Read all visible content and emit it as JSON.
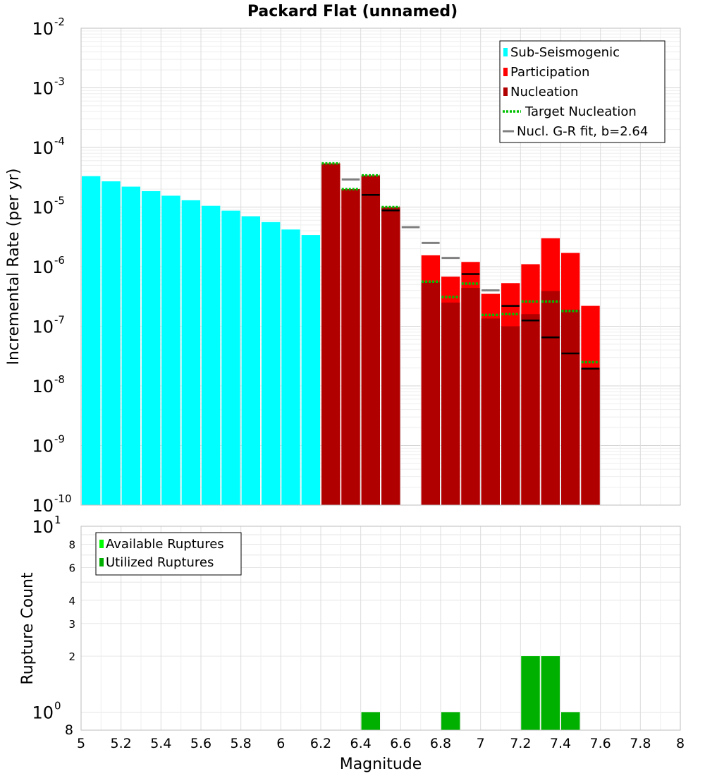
{
  "chart_data": [
    {
      "type": "bar",
      "title": "Packard Flat (unnamed)",
      "xlabel": "",
      "ylabel": "Incremental Rate (per yr)",
      "yscale": "log",
      "ylim": [
        1e-10,
        0.01
      ],
      "xlim": [
        5,
        8
      ],
      "grid": true,
      "legend_position": "top-right",
      "bin_width": 0.1,
      "y_ticks": [
        {
          "base": "10",
          "exp": "-10"
        },
        {
          "base": "10",
          "exp": "-9"
        },
        {
          "base": "10",
          "exp": "-8"
        },
        {
          "base": "10",
          "exp": "-7"
        },
        {
          "base": "10",
          "exp": "-6"
        },
        {
          "base": "10",
          "exp": "-5"
        },
        {
          "base": "10",
          "exp": "-4"
        },
        {
          "base": "10",
          "exp": "-3"
        },
        {
          "base": "10",
          "exp": "-2"
        }
      ],
      "legend": [
        {
          "label": "Sub-Seismogenic",
          "kind": "box",
          "color": "#00ffff"
        },
        {
          "label": "Participation",
          "kind": "box",
          "color": "#ff0000"
        },
        {
          "label": "Nucleation",
          "kind": "box",
          "color": "#b00000"
        },
        {
          "label": "Target Nucleation",
          "kind": "dotted",
          "color": "#00c000"
        },
        {
          "label": "Nucl. G-R fit, b=2.64",
          "kind": "line",
          "color": "#808080"
        }
      ],
      "series": [
        {
          "name": "Sub-Seismogenic",
          "color": "#00ffff",
          "x": [
            5.05,
            5.15,
            5.25,
            5.35,
            5.45,
            5.55,
            5.65,
            5.75,
            5.85,
            5.95,
            6.05,
            6.15
          ],
          "values": [
            3.3e-05,
            2.7e-05,
            2.2e-05,
            1.85e-05,
            1.55e-05,
            1.3e-05,
            1.05e-05,
            8.7e-06,
            7e-06,
            5.6e-06,
            4.2e-06,
            3.4e-06
          ]
        },
        {
          "name": "Participation",
          "color": "#ff0000",
          "x": [
            6.25,
            6.35,
            6.45,
            6.55,
            6.75,
            6.85,
            6.95,
            7.05,
            7.15,
            7.25,
            7.35,
            7.45,
            7.55
          ],
          "values": [
            5.4e-05,
            2e-05,
            3.4e-05,
            1e-05,
            1.55e-06,
            6.8e-07,
            1.2e-06,
            3.5e-07,
            5.3e-07,
            1.1e-06,
            3e-06,
            1.7e-06,
            2.2e-07
          ]
        },
        {
          "name": "Nucleation",
          "color": "#b00000",
          "x": [
            6.25,
            6.35,
            6.45,
            6.55,
            6.75,
            6.85,
            6.95,
            7.05,
            7.15,
            7.25,
            7.35,
            7.45,
            7.55
          ],
          "values": [
            5.4e-05,
            2e-05,
            3.4e-05,
            1e-05,
            5.5e-07,
            2.5e-07,
            4.4e-07,
            1.35e-07,
            1e-07,
            1.6e-07,
            3.9e-07,
            1.9e-07,
            2e-08
          ]
        },
        {
          "name": "Target Nucleation",
          "color": "#00c000",
          "x": [
            6.25,
            6.35,
            6.45,
            6.55,
            6.75,
            6.85,
            6.95,
            7.05,
            7.15,
            7.25,
            7.35,
            7.45,
            7.55
          ],
          "values": [
            5.4e-05,
            2e-05,
            3.4e-05,
            1e-05,
            5.6e-07,
            3.1e-07,
            5.2e-07,
            1.55e-07,
            1.6e-07,
            2.6e-07,
            2.6e-07,
            1.8e-07,
            2.5e-08
          ]
        },
        {
          "name": "Nucl. G-R fit, b=2.64",
          "color": "#808080",
          "x": [
            6.35,
            6.65,
            6.75,
            6.85,
            7.05
          ],
          "values": [
            2.9e-05,
            4.6e-06,
            2.5e-06,
            1.4e-06,
            4e-07
          ]
        },
        {
          "name": "",
          "color": "#000000",
          "x": [
            6.45,
            6.55,
            6.95,
            7.15,
            7.25,
            7.35,
            7.45,
            7.55
          ],
          "values": [
            1.6e-05,
            8.8e-06,
            7.5e-07,
            2.2e-07,
            1.25e-07,
            6.5e-08,
            3.5e-08,
            1.95e-08
          ]
        }
      ]
    },
    {
      "type": "bar",
      "xlabel": "Magnitude",
      "ylabel": "Rupture Count",
      "yscale": "log",
      "ylim": [
        0.8,
        10
      ],
      "xlim": [
        5,
        8
      ],
      "grid": true,
      "legend_position": "top-left",
      "bin_width": 0.1,
      "x_ticks": [
        "5",
        "5.2",
        "5.4",
        "5.6",
        "5.8",
        "6",
        "6.2",
        "6.4",
        "6.6",
        "6.8",
        "7",
        "7.2",
        "7.4",
        "7.6",
        "7.8",
        "8"
      ],
      "y_major_ticks": [
        {
          "base": "10",
          "exp": "0",
          "value": 1
        },
        {
          "base": "10",
          "exp": "1",
          "value": 10
        }
      ],
      "y_minor_ticks": [
        {
          "label": "2",
          "value": 2
        },
        {
          "label": "3",
          "value": 3
        },
        {
          "label": "4",
          "value": 4
        },
        {
          "label": "6",
          "value": 6
        },
        {
          "label": "8",
          "value": 8
        },
        {
          "label": "8",
          "value": 0.8
        }
      ],
      "legend": [
        {
          "label": "Available Ruptures",
          "color": "#00ff00"
        },
        {
          "label": "Utilized Ruptures",
          "color": "#00b000"
        }
      ],
      "series": [
        {
          "name": "Available Ruptures",
          "color": "#00ff00",
          "x": [
            6.45,
            6.85,
            7.25,
            7.35,
            7.45
          ],
          "values": [
            1,
            1,
            2,
            2,
            1
          ]
        },
        {
          "name": "Utilized Ruptures",
          "color": "#00b000",
          "x": [
            6.45,
            6.85,
            7.25,
            7.35,
            7.45
          ],
          "values": [
            1,
            1,
            2,
            2,
            1
          ]
        }
      ]
    }
  ]
}
